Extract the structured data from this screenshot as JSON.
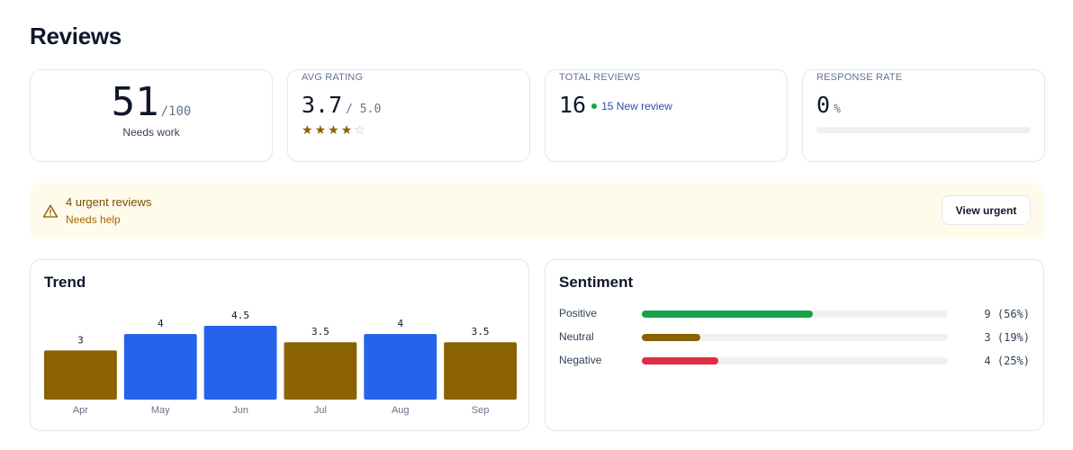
{
  "page": {
    "title": "Reviews"
  },
  "kpis": {
    "score": {
      "value": "51",
      "max": "/100",
      "sub": "Needs work"
    },
    "avg_rating": {
      "label": "AVG RATING",
      "value": "3.7",
      "scale": "/ 5.0",
      "stars_filled": 4,
      "stars_total": 5
    },
    "total_reviews": {
      "label": "TOTAL REVIEWS",
      "value": "16",
      "badge": "15 New review"
    },
    "response_rate": {
      "label": "RESPONSE RATE",
      "value": "0",
      "unit": "%",
      "progress_fraction": 0
    }
  },
  "alert": {
    "title": "4 urgent reviews",
    "subtitle": "Needs help",
    "button_label": "View urgent",
    "icon": "warning-triangle-icon"
  },
  "trend": {
    "title": "Trend",
    "chart_data": {
      "type": "bar",
      "categories": [
        "Apr",
        "May",
        "Jun",
        "Jul",
        "Aug",
        "Sep"
      ],
      "values": [
        3,
        4,
        4.5,
        3.5,
        4,
        3.5
      ],
      "value_labels": [
        "3",
        "4",
        "4.5",
        "3.5",
        "4",
        "3.5"
      ],
      "bar_colors": [
        "#8a6200",
        "#2563eb",
        "#2563eb",
        "#8a6200",
        "#2563eb",
        "#8a6200"
      ],
      "grid": false
    }
  },
  "sentiment": {
    "title": "Sentiment",
    "rows": [
      {
        "label": "Positive",
        "count_text": "9 (56%)",
        "fraction": 0.56,
        "color": "#16a34a"
      },
      {
        "label": "Neutral",
        "count_text": "3 (19%)",
        "fraction": 0.19,
        "color": "#8a6200"
      },
      {
        "label": "Negative",
        "count_text": "4 (25%)",
        "fraction": 0.25,
        "color": "#dc2f45"
      }
    ]
  },
  "colors": {
    "accent_blue": "#2563eb",
    "gold": "#8a6200",
    "green": "#16a34a",
    "red": "#dc2f45",
    "alert_bg": "#fffbea"
  }
}
